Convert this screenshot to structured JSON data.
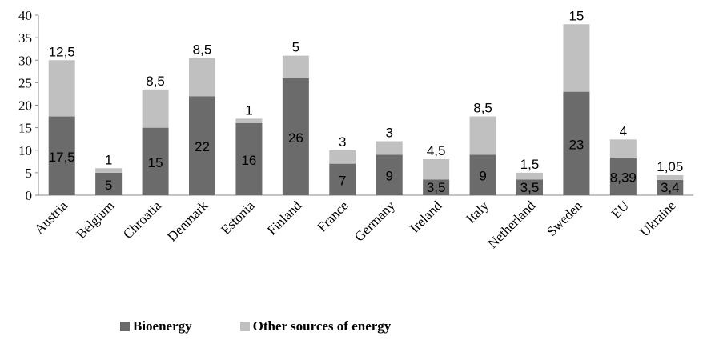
{
  "chart_data": {
    "type": "bar",
    "stacked": true,
    "categories": [
      "Austria",
      "Belgium",
      "Chroatia",
      "Denmark",
      "Estonia",
      "Finland",
      "France",
      "Germany",
      "Ireland",
      "Italy",
      "Netherland",
      "Sweden",
      "EU",
      "Ukraine"
    ],
    "series": [
      {
        "name": "Bioenergy",
        "color": "#6b6b6b",
        "values": [
          17.5,
          5,
          15,
          22,
          16,
          26,
          7,
          9,
          3.5,
          9,
          3.5,
          23,
          8.39,
          3.4
        ],
        "labels": [
          "17,5",
          "5",
          "15",
          "22",
          "16",
          "26",
          "7",
          "9",
          "3,5",
          "9",
          "3,5",
          "23",
          "8,39",
          "3,4"
        ]
      },
      {
        "name": "Other sources of energy",
        "color": "#c0c0c0",
        "values": [
          12.5,
          1,
          8.5,
          8.5,
          1,
          5,
          3,
          3,
          4.5,
          8.5,
          1.5,
          15,
          4,
          1.05
        ],
        "labels": [
          "12,5",
          "1",
          "8,5",
          "8,5",
          "1",
          "5",
          "3",
          "3",
          "4,5",
          "8,5",
          "1,5",
          "15",
          "4",
          "1,05"
        ]
      }
    ],
    "yticks": [
      "0",
      "5",
      "10",
      "15",
      "20",
      "25",
      "30",
      "35",
      "40"
    ],
    "ylim": [
      0,
      40
    ],
    "grid": false,
    "legend_position": "bottom"
  }
}
